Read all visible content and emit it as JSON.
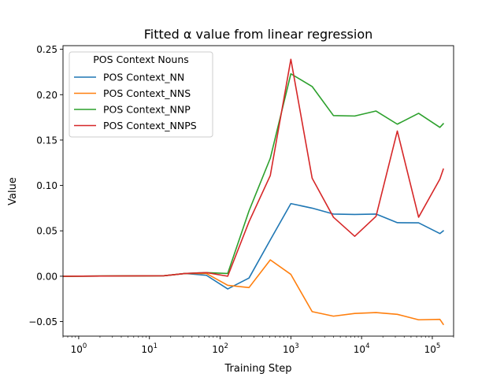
{
  "chart_data": {
    "type": "line",
    "title": "Fitted α value from linear regression",
    "xlabel": "Training Step",
    "ylabel": "Value",
    "xscale": "log",
    "xlim": [
      0.6,
      200000
    ],
    "ylim": [
      -0.066,
      0.254
    ],
    "grid": false,
    "legend_title": "POS Context Nouns",
    "legend_position": "top-left",
    "x": [
      0.6,
      16,
      32,
      64,
      128,
      256,
      512,
      1000,
      2000,
      4000,
      8000,
      16000,
      32000,
      64000,
      128000,
      143000
    ],
    "series": [
      {
        "name": "POS Context_NN",
        "color": "#1f77b4",
        "values": [
          0.0,
          0.0005,
          0.003,
          0.001,
          -0.014,
          -0.002,
          0.04,
          0.08,
          0.075,
          0.0685,
          0.068,
          0.0685,
          0.059,
          0.0588,
          0.047,
          0.05
        ]
      },
      {
        "name": "POS Context_NNS",
        "color": "#ff7f0e",
        "values": [
          0.0,
          0.0005,
          0.003,
          0.003,
          -0.01,
          -0.0125,
          0.018,
          0.002,
          -0.039,
          -0.044,
          -0.041,
          -0.04,
          -0.042,
          -0.048,
          -0.0475,
          -0.053
        ]
      },
      {
        "name": "POS Context_NNP",
        "color": "#2ca02c",
        "values": [
          0.0,
          0.0005,
          0.003,
          0.004,
          0.003,
          0.072,
          0.13,
          0.223,
          0.209,
          0.177,
          0.1765,
          0.182,
          0.1675,
          0.1795,
          0.164,
          0.168
        ]
      },
      {
        "name": "POS Context_NNPS",
        "color": "#d62728",
        "values": [
          0.0,
          0.0005,
          0.003,
          0.004,
          0.0,
          0.06,
          0.111,
          0.239,
          0.108,
          0.065,
          0.044,
          0.066,
          0.16,
          0.065,
          0.107,
          0.118
        ]
      }
    ],
    "yticks": [
      {
        "value": -0.05,
        "label": "−0.05"
      },
      {
        "value": 0.0,
        "label": "0.00"
      },
      {
        "value": 0.05,
        "label": "0.05"
      },
      {
        "value": 0.1,
        "label": "0.10"
      },
      {
        "value": 0.15,
        "label": "0.15"
      },
      {
        "value": 0.2,
        "label": "0.20"
      },
      {
        "value": 0.25,
        "label": "0.25"
      }
    ],
    "xticks": [
      {
        "value": 1,
        "base": "10",
        "exp": "0"
      },
      {
        "value": 10,
        "base": "10",
        "exp": "1"
      },
      {
        "value": 100,
        "base": "10",
        "exp": "2"
      },
      {
        "value": 1000,
        "base": "10",
        "exp": "3"
      },
      {
        "value": 10000,
        "base": "10",
        "exp": "4"
      },
      {
        "value": 100000,
        "base": "10",
        "exp": "5"
      }
    ]
  }
}
